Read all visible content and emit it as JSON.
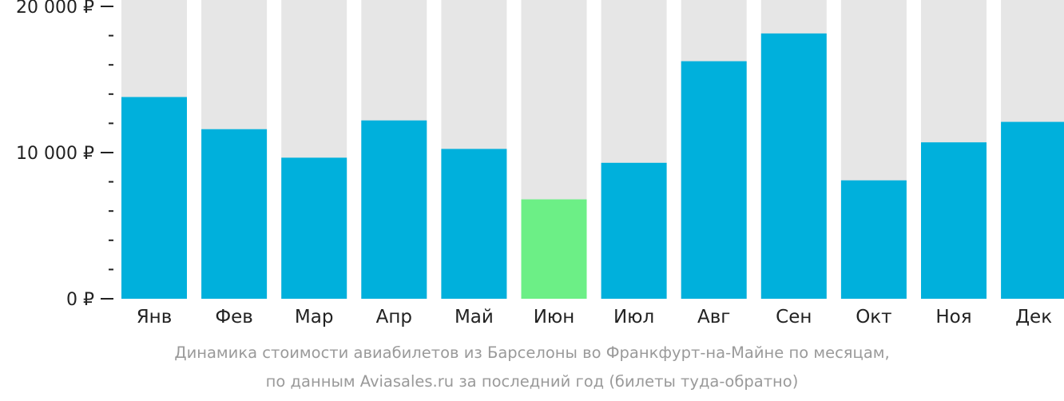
{
  "chart_data": {
    "type": "bar",
    "categories": [
      "Янв",
      "Фев",
      "Мар",
      "Апр",
      "Май",
      "Июн",
      "Июл",
      "Авг",
      "Сен",
      "Окт",
      "Ноя",
      "Дек"
    ],
    "values": [
      13800,
      11600,
      9650,
      12200,
      10250,
      6800,
      9300,
      16250,
      18150,
      8100,
      10700,
      12100
    ],
    "highlight_index": 5,
    "ylim": [
      0,
      20000
    ],
    "ytick_labels": [
      "0 ₽",
      "10 000 ₽",
      "20 000 ₽"
    ],
    "ytick_values": [
      0,
      10000,
      20000
    ],
    "minor_tick_step": 2000,
    "grid": false,
    "xlabel": "",
    "ylabel": "",
    "caption_line1": "Динамика стоимости авиабилетов из Барселоны во Франкфурт-на-Майне по месяцам,",
    "caption_line2": "по данным Aviasales.ru за последний год (билеты туда-обратно)",
    "colors": {
      "bar": "#00b0dc",
      "highlight": "#6cef86",
      "track": "#e6e6e6",
      "axis": "#222222",
      "label": "#222222",
      "caption": "#9a9a9a"
    }
  }
}
